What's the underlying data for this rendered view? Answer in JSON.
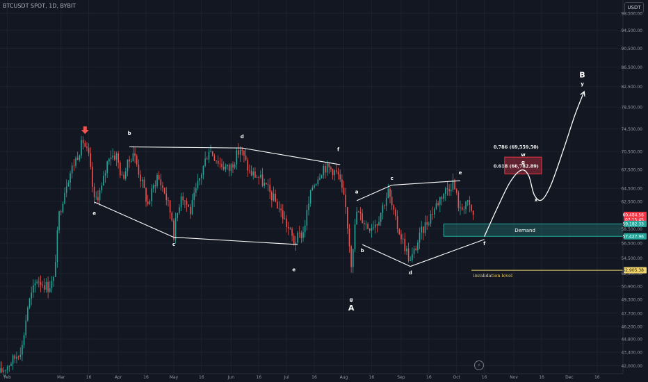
{
  "header": {
    "symbol_title": "BTCUSDT SPOT, 1D, BYBIT",
    "currency": "USDT"
  },
  "colors": {
    "background": "#131722",
    "up": "#26a69a",
    "down": "#ef5350",
    "grid": "#1e222d",
    "axis_text": "#9598a1",
    "drawing": "#ffffff",
    "arrow_marker": "#ef5350",
    "demand_zone": "#26a69a",
    "fib_zone": "#f23645",
    "invalidation_line": "#f0d36b"
  },
  "chart_data": {
    "type": "candlestick",
    "title": "BTCUSDT SPOT, 1D, BYBIT",
    "xlabel": "",
    "ylabel": "",
    "x_range": [
      "2024-01-28",
      "2024-12-30"
    ],
    "ylim": [
      41200,
      101700
    ],
    "log_scale": true,
    "grid": true,
    "x_ticks": [
      {
        "date": "2024-02-01",
        "label": "Feb"
      },
      {
        "date": "2024-03-01",
        "label": "Mar"
      },
      {
        "date": "2024-03-16",
        "label": "16"
      },
      {
        "date": "2024-04-01",
        "label": "Apr"
      },
      {
        "date": "2024-04-16",
        "label": "16"
      },
      {
        "date": "2024-05-01",
        "label": "May"
      },
      {
        "date": "2024-05-16",
        "label": "16"
      },
      {
        "date": "2024-06-01",
        "label": "Jun"
      },
      {
        "date": "2024-06-16",
        "label": "16"
      },
      {
        "date": "2024-07-01",
        "label": "Jul"
      },
      {
        "date": "2024-07-16",
        "label": "16"
      },
      {
        "date": "2024-08-01",
        "label": "Aug"
      },
      {
        "date": "2024-08-16",
        "label": "16"
      },
      {
        "date": "2024-09-01",
        "label": "Sep"
      },
      {
        "date": "2024-09-16",
        "label": "16"
      },
      {
        "date": "2024-10-01",
        "label": "Oct"
      },
      {
        "date": "2024-10-16",
        "label": "16"
      },
      {
        "date": "2024-11-01",
        "label": "Nov"
      },
      {
        "date": "2024-11-16",
        "label": "16"
      },
      {
        "date": "2024-12-01",
        "label": "Dec"
      },
      {
        "date": "2024-12-16",
        "label": "16"
      }
    ],
    "y_ticks": [
      {
        "value": 98500,
        "label": "98,500.00"
      },
      {
        "value": 94500,
        "label": "94,500.00"
      },
      {
        "value": 90500,
        "label": "90,500.00"
      },
      {
        "value": 86500,
        "label": "86,500.00"
      },
      {
        "value": 82500,
        "label": "82,500.00"
      },
      {
        "value": 78500,
        "label": "78,500.00"
      },
      {
        "value": 74500,
        "label": "74,500.00"
      },
      {
        "value": 70500,
        "label": "70,500.00"
      },
      {
        "value": 67500,
        "label": "67,500.00"
      },
      {
        "value": 64500,
        "label": "64,500.00"
      },
      {
        "value": 62500,
        "label": "62,500.00"
      },
      {
        "value": 58500,
        "label": "58,500.00"
      },
      {
        "value": 56500,
        "label": "56,500.00"
      },
      {
        "value": 54500,
        "label": "54,500.00"
      },
      {
        "value": 52500,
        "label": "52,500.00"
      },
      {
        "value": 50900,
        "label": "50,900.00"
      },
      {
        "value": 49300,
        "label": "49,300.00"
      },
      {
        "value": 47700,
        "label": "47,700.00"
      },
      {
        "value": 46200,
        "label": "46,200.00"
      },
      {
        "value": 44800,
        "label": "44,800.00"
      },
      {
        "value": 43400,
        "label": "43,400.00"
      },
      {
        "value": 42000,
        "label": "42,000.00"
      }
    ],
    "price_path": [
      [
        "2024-01-28",
        41300
      ],
      [
        "2024-02-05",
        42800
      ],
      [
        "2024-02-09",
        44000
      ],
      [
        "2024-02-12",
        48500
      ],
      [
        "2024-02-17",
        51800
      ],
      [
        "2024-02-23",
        50800
      ],
      [
        "2024-02-26",
        51600
      ],
      [
        "2024-02-29",
        60500
      ],
      [
        "2024-03-04",
        65500
      ],
      [
        "2024-03-08",
        68500
      ],
      [
        "2024-03-13",
        72300
      ],
      [
        "2024-03-16",
        69500
      ],
      [
        "2024-03-19",
        62500
      ],
      [
        "2024-03-23",
        64500
      ],
      [
        "2024-03-27",
        70000
      ],
      [
        "2024-03-31",
        69800
      ],
      [
        "2024-04-03",
        66000
      ],
      [
        "2024-04-09",
        70500
      ],
      [
        "2024-04-13",
        66200
      ],
      [
        "2024-04-17",
        62000
      ],
      [
        "2024-04-22",
        66500
      ],
      [
        "2024-04-26",
        64000
      ],
      [
        "2024-04-30",
        60000
      ],
      [
        "2024-05-01",
        57800
      ],
      [
        "2024-05-05",
        63800
      ],
      [
        "2024-05-10",
        61000
      ],
      [
        "2024-05-15",
        66000
      ],
      [
        "2024-05-20",
        71000
      ],
      [
        "2024-05-26",
        68500
      ],
      [
        "2024-05-31",
        67500
      ],
      [
        "2024-06-06",
        71000
      ],
      [
        "2024-06-11",
        67000
      ],
      [
        "2024-06-16",
        66300
      ],
      [
        "2024-06-21",
        64200
      ],
      [
        "2024-06-27",
        61500
      ],
      [
        "2024-07-05",
        56700
      ],
      [
        "2024-07-10",
        58000
      ],
      [
        "2024-07-15",
        64800
      ],
      [
        "2024-07-21",
        68000
      ],
      [
        "2024-07-26",
        67500
      ],
      [
        "2024-07-29",
        66500
      ],
      [
        "2024-08-02",
        61500
      ],
      [
        "2024-08-05",
        54000
      ],
      [
        "2024-08-08",
        61000
      ],
      [
        "2024-08-14",
        58800
      ],
      [
        "2024-08-19",
        59500
      ],
      [
        "2024-08-25",
        64000
      ],
      [
        "2024-08-29",
        59500
      ],
      [
        "2024-09-06",
        54000
      ],
      [
        "2024-09-12",
        58000
      ],
      [
        "2024-09-17",
        60500
      ],
      [
        "2024-09-23",
        63500
      ],
      [
        "2024-09-29",
        65500
      ],
      [
        "2024-10-03",
        61000
      ],
      [
        "2024-10-06",
        62500
      ],
      [
        "2024-10-10",
        60484.56
      ]
    ],
    "price_noise_seed": 17,
    "price_noise_amp": 0.014,
    "annotations": {
      "peak_marker_date": "2024-03-14",
      "trendlines": [
        {
          "from": [
            "2024-03-19",
            62400
          ],
          "to": [
            "2024-05-01",
            57300
          ]
        },
        {
          "from": [
            "2024-05-01",
            57300
          ],
          "to": [
            "2024-07-07",
            56300
          ]
        },
        {
          "from": [
            "2024-04-07",
            71300
          ],
          "to": [
            "2024-06-07",
            71100
          ]
        },
        {
          "from": [
            "2024-06-07",
            71100
          ],
          "to": [
            "2024-07-30",
            68300
          ]
        },
        {
          "from": [
            "2024-08-08",
            62600
          ],
          "to": [
            "2024-08-27",
            65000
          ]
        },
        {
          "from": [
            "2024-08-27",
            65000
          ],
          "to": [
            "2024-10-03",
            65700
          ]
        },
        {
          "from": [
            "2024-08-11",
            56300
          ],
          "to": [
            "2024-09-06",
            53400
          ]
        },
        {
          "from": [
            "2024-09-06",
            53400
          ],
          "to": [
            "2024-10-16",
            57000
          ]
        }
      ],
      "wave_labels": [
        {
          "text": "a",
          "date": "2024-03-19",
          "price": 60500,
          "size": "small"
        },
        {
          "text": "b",
          "date": "2024-04-07",
          "price": 73400,
          "size": "small"
        },
        {
          "text": "c",
          "date": "2024-05-01",
          "price": 56100,
          "size": "small"
        },
        {
          "text": "d",
          "date": "2024-06-07",
          "price": 72800,
          "size": "small"
        },
        {
          "text": "e",
          "date": "2024-07-05",
          "price": 52800,
          "size": "small"
        },
        {
          "text": "f",
          "date": "2024-07-29",
          "price": 70600,
          "size": "small"
        },
        {
          "text": "g",
          "date": "2024-08-05",
          "price": 49100,
          "size": "small"
        },
        {
          "text": "A",
          "date": "2024-08-05",
          "price": 48000,
          "size": "large"
        },
        {
          "text": "a",
          "date": "2024-08-08",
          "price": 63700,
          "size": "small"
        },
        {
          "text": "b",
          "date": "2024-08-11",
          "price": 55300,
          "size": "small"
        },
        {
          "text": "c",
          "date": "2024-08-27",
          "price": 65800,
          "size": "small"
        },
        {
          "text": "d",
          "date": "2024-09-06",
          "price": 52400,
          "size": "small"
        },
        {
          "text": "e",
          "date": "2024-10-03",
          "price": 66700,
          "size": "small"
        },
        {
          "text": "f",
          "date": "2024-10-16",
          "price": 56200,
          "size": "small"
        },
        {
          "text": "w",
          "date": "2024-11-06",
          "price": 69700,
          "size": "small"
        },
        {
          "text": "g",
          "date": "2024-11-06",
          "price": 68400,
          "size": "small"
        },
        {
          "text": "x",
          "date": "2024-11-13",
          "price": 62500,
          "size": "small"
        },
        {
          "text": "B",
          "date": "2024-12-08",
          "price": 84300,
          "size": "large"
        },
        {
          "text": "y",
          "date": "2024-12-08",
          "price": 82700,
          "size": "small"
        }
      ],
      "fib_zone": {
        "from_date": "2024-10-27",
        "to_date": "2024-11-16",
        "low": 66782.89,
        "high": 69559.5
      },
      "fib_labels": [
        {
          "text": "0.786 (69,559.50)",
          "date": "2024-10-21",
          "price": 71000
        },
        {
          "text": "0.618 (66,782.89)",
          "date": "2024-10-21",
          "price": 67800
        }
      ],
      "demand_zone": {
        "from_date": "2024-09-24",
        "to_date": "2024-12-30",
        "low": 57427.96,
        "high": 59182.33,
        "label": "Demand",
        "label_date": "2024-11-07"
      },
      "invalidation": {
        "price": 52905.38,
        "from_date": "2024-10-09",
        "to_date": "2024-12-30",
        "label": "invalidation level",
        "label_date": "2024-10-10"
      },
      "projection_path": [
        [
          "2024-10-16",
          57400
        ],
        [
          "2024-10-23",
          61500
        ],
        [
          "2024-10-30",
          65500
        ],
        [
          "2024-11-05",
          67400
        ],
        [
          "2024-11-09",
          66500
        ],
        [
          "2024-11-12",
          63500
        ],
        [
          "2024-11-16",
          62700
        ],
        [
          "2024-11-21",
          65000
        ],
        [
          "2024-11-28",
          71000
        ],
        [
          "2024-12-04",
          77000
        ],
        [
          "2024-12-09",
          81500
        ]
      ]
    },
    "price_badges": [
      {
        "label": "60,484.56",
        "sub": "07:15:45",
        "value": 60484.56,
        "color": "#f23645"
      },
      {
        "label": "59,182.33",
        "value": 59182.33,
        "color": "#26a69a"
      },
      {
        "label": "57,427.96",
        "value": 57427.96,
        "color": "#26a69a"
      },
      {
        "label": "52,905.38",
        "value": 52905.38,
        "color": "#f0d36b"
      }
    ]
  }
}
